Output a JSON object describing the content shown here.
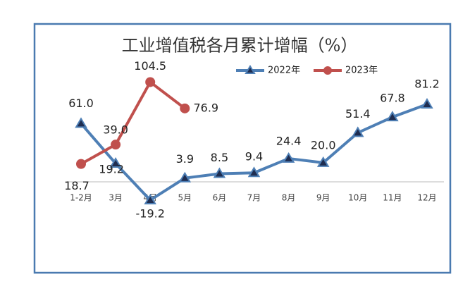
{
  "chart_data": {
    "type": "line",
    "title": "工业增值税各月累计增幅（%）",
    "categories": [
      "1-2月",
      "3月",
      "4月",
      "5月",
      "6月",
      "7月",
      "8月",
      "9月",
      "10月",
      "11月",
      "12月"
    ],
    "series": [
      {
        "name": "2022年",
        "color": "#4e7fb5",
        "marker": "triangle",
        "values": [
          61.0,
          19.2,
          -19.2,
          3.9,
          8.5,
          9.4,
          24.4,
          20.0,
          51.4,
          67.8,
          81.2
        ],
        "value_labels": [
          "61.0",
          "19.2",
          "-19.2",
          "3.9",
          "8.5",
          "9.4",
          "24.4",
          "20.0",
          "51.4",
          "67.8",
          "81.2"
        ]
      },
      {
        "name": "2023年",
        "color": "#c0504d",
        "marker": "circle",
        "values": [
          18.7,
          39.0,
          104.5,
          76.9,
          null,
          null,
          null,
          null,
          null,
          null,
          null
        ],
        "value_labels": [
          "18.7",
          "39.0",
          "104.5",
          "76.9",
          null,
          null,
          null,
          null,
          null,
          null,
          null
        ]
      }
    ],
    "ylim": [
      -30,
      110
    ],
    "grid": false,
    "legend": "top"
  }
}
